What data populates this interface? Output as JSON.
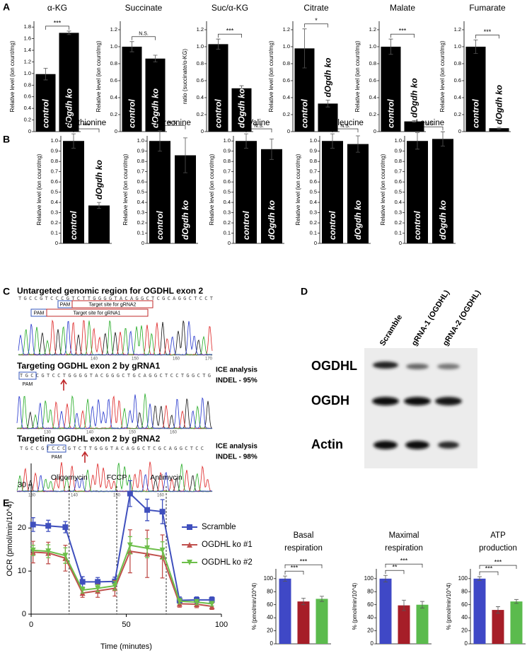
{
  "panel_labels": [
    "A",
    "B",
    "C",
    "D",
    "E"
  ],
  "chart_data": [
    {
      "type": "bar",
      "title": "α-KG",
      "y_label": "Relative level (ion count/mg)",
      "categories": [
        "control",
        "dOgdh ko"
      ],
      "values": [
        0.99,
        1.7
      ],
      "errors": [
        0.1,
        0.03
      ],
      "color": "#000000",
      "ylim": [
        0,
        1.9
      ],
      "yticks": [
        0,
        0.2,
        0.4,
        0.6,
        0.8,
        {
          "value": 1,
          "label": "1.0"
        },
        1.2,
        1.4,
        1.6,
        1.8
      ],
      "significance": [
        "***"
      ]
    },
    {
      "type": "bar",
      "title": "Succinate",
      "y_label": "Relative level (ion count/mg)",
      "categories": [
        "control",
        "dOgdh ko"
      ],
      "values": [
        1.0,
        0.86
      ],
      "errors": [
        0.06,
        0.04
      ],
      "color": "#000000",
      "ylim": [
        0,
        1.3
      ],
      "yticks": [
        0,
        0.2,
        0.4,
        0.6,
        0.8,
        {
          "value": 1,
          "label": "1.0"
        },
        1.2
      ],
      "significance": [
        "N.S."
      ]
    },
    {
      "type": "bar",
      "title": "Suc/α-KG",
      "y_label": "ratio (succinate/α-KG)",
      "categories": [
        "control",
        "dOgdh ko"
      ],
      "values": [
        1.03,
        0.51
      ],
      "errors": [
        0.06,
        0.03
      ],
      "color": "#000000",
      "ylim": [
        0,
        1.3
      ],
      "yticks": [
        0,
        0.2,
        0.4,
        0.6,
        0.8,
        {
          "value": 1,
          "label": "1.0"
        },
        1.2
      ],
      "significance": [
        "***"
      ]
    },
    {
      "type": "bar",
      "title": "Citrate",
      "y_label": "Relative level (ion count/mg)",
      "categories": [
        "control",
        "dOgdh ko"
      ],
      "values": [
        0.98,
        0.33
      ],
      "errors": [
        0.23,
        0.04
      ],
      "color": "#000000",
      "ylim": [
        0,
        1.3
      ],
      "yticks": [
        0,
        0.2,
        0.4,
        0.6,
        0.8,
        {
          "value": 1,
          "label": "1.0"
        },
        1.2
      ],
      "significance": [
        "*"
      ]
    },
    {
      "type": "bar",
      "title": "Malate",
      "y_label": "Relative level (ion count/mg)",
      "categories": [
        "control",
        "dOgdh ko"
      ],
      "values": [
        1.0,
        0.12
      ],
      "errors": [
        0.09,
        0.01
      ],
      "color": "#000000",
      "ylim": [
        0,
        1.3
      ],
      "yticks": [
        0,
        0.2,
        0.4,
        0.6,
        0.8,
        {
          "value": 1,
          "label": "1.0"
        },
        1.2
      ],
      "significance": [
        "***"
      ]
    },
    {
      "type": "bar",
      "title": "Fumarate",
      "y_label": "Relative level (ion count/mg)",
      "categories": [
        "control",
        "dOgdh ko"
      ],
      "values": [
        1.0,
        0.04
      ],
      "errors": [
        0.08,
        0.01
      ],
      "color": "#000000",
      "ylim": [
        0,
        1.3
      ],
      "yticks": [
        0,
        0.2,
        0.4,
        0.6,
        0.8,
        {
          "value": 1,
          "label": "1.0"
        },
        1.2
      ],
      "significance": [
        "***"
      ]
    },
    {
      "type": "bar",
      "title": "Methionine",
      "y_label": "Relative level (ion count/mg)",
      "categories": [
        "control",
        "dOgdh ko"
      ],
      "values": [
        1.0,
        0.37
      ],
      "errors": [
        0.07,
        0.03
      ],
      "color": "#000000",
      "ylim": [
        0,
        1.05
      ],
      "yticks": [
        0,
        0.1,
        0.2,
        0.3,
        0.4,
        0.5,
        0.6,
        0.7,
        0.8,
        0.9,
        {
          "value": 1,
          "label": "1.0"
        }
      ],
      "significance": [
        "***"
      ]
    },
    {
      "type": "bar",
      "title": "Threonine",
      "y_label": "Relative level (ion count/mg)",
      "categories": [
        "control",
        "dOgdh ko"
      ],
      "values": [
        1.0,
        0.86
      ],
      "errors": [
        0.1,
        0.17
      ],
      "color": "#000000",
      "ylim": [
        0,
        1.05
      ],
      "yticks": [
        0,
        0.1,
        0.2,
        0.3,
        0.4,
        0.5,
        0.6,
        0.7,
        0.8,
        0.9,
        {
          "value": 1,
          "label": "1.0"
        }
      ],
      "significance": [
        "N.S."
      ]
    },
    {
      "type": "bar",
      "title": "Valine",
      "y_label": "Relative level (ion count/mg)",
      "categories": [
        "control",
        "dOgdh ko"
      ],
      "values": [
        1.0,
        0.92
      ],
      "errors": [
        0.07,
        0.1
      ],
      "color": "#000000",
      "ylim": [
        0,
        1.05
      ],
      "yticks": [
        0,
        0.1,
        0.2,
        0.3,
        0.4,
        0.5,
        0.6,
        0.7,
        0.8,
        0.9,
        {
          "value": 1,
          "label": "1.0"
        }
      ],
      "significance": [
        "N.S."
      ]
    },
    {
      "type": "bar",
      "title": "Isoleucine",
      "y_label": "Relative level (ion count/mg)",
      "categories": [
        "control",
        "dOgdh ko"
      ],
      "values": [
        1.0,
        0.97
      ],
      "errors": [
        0.07,
        0.08
      ],
      "color": "#000000",
      "ylim": [
        0,
        1.05
      ],
      "yticks": [
        0,
        0.1,
        0.2,
        0.3,
        0.4,
        0.5,
        0.6,
        0.7,
        0.8,
        0.9,
        {
          "value": 1,
          "label": "1.0"
        }
      ],
      "significance": [
        "N.S."
      ]
    },
    {
      "type": "bar",
      "title": "Leucine",
      "y_label": "Relative level (ion count/mg)",
      "categories": [
        "control",
        "dOgdh ko"
      ],
      "values": [
        1.0,
        1.02
      ],
      "errors": [
        0.08,
        0.07
      ],
      "color": "#000000",
      "ylim": [
        0,
        1.05
      ],
      "yticks": [
        0,
        0.1,
        0.2,
        0.3,
        0.4,
        0.5,
        0.6,
        0.7,
        0.8,
        0.9,
        {
          "value": 1,
          "label": "1.0"
        }
      ],
      "significance": [
        "N.S."
      ]
    },
    {
      "type": "line",
      "x_label": "Time (minutes)",
      "y_label": "OCR (pmol/min/10^4)",
      "x": [
        1,
        9,
        18,
        27,
        35,
        44,
        52,
        61,
        69,
        78,
        87,
        95
      ],
      "xlim": [
        0,
        100
      ],
      "xticks": [
        0,
        50,
        100
      ],
      "ylim": [
        0,
        35
      ],
      "yticks": [
        0,
        10,
        20,
        30
      ],
      "legend": "right",
      "annotations": [
        {
          "x": 20,
          "label": "Oligomycin"
        },
        {
          "x": 45,
          "label": "FCCP"
        },
        {
          "x": 71,
          "label": "Antimycin"
        }
      ],
      "series": [
        {
          "name": "Scramble",
          "color": "#3f4fbd",
          "marker": "square",
          "values": [
            20.8,
            20.5,
            20.2,
            7.5,
            7.5,
            7.6,
            28.0,
            24.2,
            23.8,
            3.2,
            3.3,
            3.3
          ],
          "errors": [
            1.6,
            1.3,
            1.3,
            1.2,
            1.0,
            1.0,
            3.0,
            2.5,
            2.8,
            0.8,
            0.7,
            0.7
          ]
        },
        {
          "name": "OGDHL ko #1",
          "color": "#c0504d",
          "marker": "triangle",
          "values": [
            14.4,
            14.2,
            13.0,
            4.9,
            5.4,
            6.0,
            14.6,
            14.0,
            13.4,
            2.4,
            2.3,
            1.8
          ],
          "errors": [
            2.5,
            2.5,
            3.0,
            1.0,
            1.5,
            1.8,
            5.0,
            5.5,
            5.0,
            0.8,
            0.8,
            0.7
          ]
        },
        {
          "name": "OGDHL ko #2",
          "color": "#6dbf4a",
          "marker": "triangle-down",
          "values": [
            14.8,
            14.6,
            13.6,
            5.6,
            6.0,
            6.6,
            16.0,
            15.3,
            14.8,
            3.0,
            2.8,
            2.4
          ],
          "errors": [
            1.2,
            1.5,
            1.8,
            0.7,
            0.8,
            1.0,
            2.0,
            2.2,
            2.0,
            0.6,
            0.6,
            0.5
          ]
        }
      ]
    },
    {
      "type": "bar",
      "title": [
        "Basal",
        "respiration"
      ],
      "y_label": "% (pmol/min/10^4)",
      "values": [
        100,
        65,
        69
      ],
      "errors": [
        4,
        5,
        4
      ],
      "colors": [
        "#3f48c6",
        "#a61e28",
        "#5bbb4d"
      ],
      "ylim": [
        0,
        115
      ],
      "yticks": [
        0,
        20,
        40,
        60,
        80,
        100
      ],
      "significance": [
        "***",
        "***"
      ]
    },
    {
      "type": "bar",
      "title": [
        "Maximal",
        "respiration"
      ],
      "y_label": "% (pmol/min/10^4)",
      "values": [
        100,
        59,
        60
      ],
      "errors": [
        5,
        8,
        5
      ],
      "colors": [
        "#3f48c6",
        "#a61e28",
        "#5bbb4d"
      ],
      "ylim": [
        0,
        115
      ],
      "yticks": [
        0,
        20,
        40,
        60,
        80,
        100
      ],
      "significance": [
        "**",
        "***"
      ]
    },
    {
      "type": "bar",
      "title": [
        "ATP",
        "production"
      ],
      "y_label": "% (pmol/min/10^4)",
      "values": [
        100,
        52,
        65
      ],
      "errors": [
        3,
        5,
        3
      ],
      "colors": [
        "#3f48c6",
        "#a61e28",
        "#5bbb4d"
      ],
      "ylim": [
        0,
        115
      ],
      "yticks": [
        0,
        20,
        40,
        60,
        80,
        100
      ],
      "significance": [
        "***",
        "***"
      ]
    }
  ],
  "sequencing": {
    "title": "Untargeted genomic region for OGDHL exon 2",
    "reference_sequence": "TGCCGTCCCGTCTTGGGGTACAGGCTCGCAGGCTCCT",
    "pam_labels": [
      "PAM",
      "PAM"
    ],
    "target_sites": [
      "Target site for gRNA2",
      "Target site for gRNA1"
    ],
    "reference_positions": [
      140,
      150,
      160,
      170
    ],
    "gRNA1": {
      "title": "Targeting OGDHL exon 2 by gRNA1",
      "sequence": "TGCCGTCCTGGGGTACGGGCTGCAGGCTCCTGGCTG",
      "pam": "PAM",
      "ice": "ICE analysis",
      "indel": "INDEL - 95%",
      "positions": [
        130,
        140,
        150,
        160
      ]
    },
    "gRNA2": {
      "title": "Targeting OGDHL exon 2 by gRNA2",
      "sequence": "TGCCGTCCCGTCTTGGGTACAGGCTCGCAGGCTCC",
      "pam": "PAM",
      "ice": "ICE analysis",
      "indel": "INDEL - 98%",
      "positions": [
        130,
        140,
        150,
        160
      ]
    }
  },
  "western_blot": {
    "lanes": [
      "Scramble",
      "gRNA-1 (OGDHL)",
      "gRNA-2 (OGDHL)"
    ],
    "proteins": [
      "OGDHL",
      "OGDH",
      "Actin"
    ]
  }
}
